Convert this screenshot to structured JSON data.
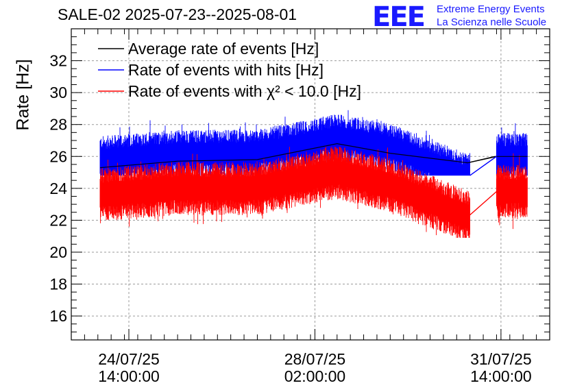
{
  "header": {
    "title": "SALE-02 2025-07-23--2025-08-01",
    "logo_text": "EEE",
    "brand_line1": "Extreme Energy Events",
    "brand_line2": "La Scienza nelle Scuole"
  },
  "chart_data": {
    "type": "line",
    "title": "SALE-02 2025-07-23--2025-08-01",
    "ylabel": "Rate [Hz]",
    "xlabel": "",
    "ylim": [
      14.5,
      34.0
    ],
    "yticks": [
      16,
      18,
      20,
      22,
      24,
      26,
      28,
      30,
      32
    ],
    "x_start": "2025-07-23 12:00:00",
    "x_end": "2025-08-01 12:00:00",
    "x_tick_labels": [
      {
        "date": "24/07/25",
        "time": "14:00:00",
        "t": "2025-07-24 14:00:00"
      },
      {
        "date": "28/07/25",
        "time": "02:00:00",
        "t": "2025-07-28 02:00:00"
      },
      {
        "date": "31/07/25",
        "time": "14:00:00",
        "t": "2025-07-31 14:00:00"
      }
    ],
    "grid": true,
    "legend_position": "top-left",
    "data_gap": [
      "2025-07-31 00:00:00",
      "2025-07-31 12:00:00"
    ],
    "series": [
      {
        "name": "Average rate of events [Hz]",
        "color": "#000000",
        "x": [
          "2025-07-24 01:00:00",
          "2025-07-25 12:00:00",
          "2025-07-27 00:00:00",
          "2025-07-28 12:00:00",
          "2025-07-29 12:00:00",
          "2025-07-30 23:00:00",
          "2025-07-31 11:00:00",
          "2025-08-01 02:00:00"
        ],
        "values": [
          25.3,
          25.7,
          25.8,
          26.8,
          26.2,
          25.6,
          26.0,
          26.0
        ]
      },
      {
        "name": "Rate of events with hits [Hz]",
        "color": "#0000ff",
        "x": [
          "2025-07-24 01:00:00",
          "2025-07-25 12:00:00",
          "2025-07-27 00:00:00",
          "2025-07-28 12:00:00",
          "2025-07-29 12:00:00",
          "2025-07-30 23:00:00",
          "2025-07-31 11:00:00",
          "2025-08-01 02:00:00"
        ],
        "values": [
          25.8,
          26.2,
          26.2,
          27.2,
          26.6,
          24.7,
          26.0,
          26.0
        ],
        "min": 24.8,
        "max": 28.9
      },
      {
        "name": "Rate of events with χ² < 10.0 [Hz]",
        "color": "#ff0000",
        "x": [
          "2025-07-24 01:00:00",
          "2025-07-25 12:00:00",
          "2025-07-27 00:00:00",
          "2025-07-28 12:00:00",
          "2025-07-29 12:00:00",
          "2025-07-30 23:00:00",
          "2025-07-31 11:00:00",
          "2025-08-01 02:00:00"
        ],
        "values": [
          23.6,
          24.0,
          24.0,
          25.0,
          24.2,
          22.2,
          23.8,
          23.8
        ],
        "min": 20.9,
        "max": 26.6
      }
    ]
  }
}
